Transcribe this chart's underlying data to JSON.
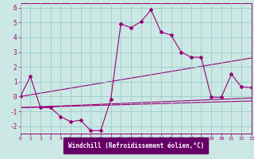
{
  "xlabel": "Windchill (Refroidissement éolien,°C)",
  "xlim": [
    0,
    23
  ],
  "ylim": [
    -2.5,
    6.3
  ],
  "yticks": [
    -2,
    -1,
    0,
    1,
    2,
    3,
    4,
    5,
    6
  ],
  "xticks": [
    0,
    1,
    2,
    3,
    4,
    5,
    6,
    7,
    8,
    9,
    10,
    11,
    12,
    13,
    14,
    15,
    16,
    17,
    18,
    19,
    20,
    21,
    22,
    23
  ],
  "bg_color": "#cce8e4",
  "line_color": "#990077",
  "grid_color": "#99cccc",
  "xlabel_bg": "#660066",
  "xlabel_fg": "#ffffff",
  "line1_x": [
    0,
    1,
    2,
    3,
    4,
    5,
    6,
    7,
    8,
    9,
    10,
    11,
    12,
    13,
    14,
    15,
    16,
    17,
    18,
    19,
    20,
    21,
    22,
    23
  ],
  "line1_y": [
    0.0,
    1.35,
    -0.75,
    -0.75,
    -1.35,
    -1.7,
    -1.6,
    -2.3,
    -2.3,
    -0.2,
    4.9,
    4.65,
    5.05,
    5.85,
    4.35,
    4.15,
    3.0,
    2.65,
    2.65,
    -0.05,
    -0.05,
    1.5,
    0.65,
    0.6
  ],
  "line2_x": [
    0,
    23
  ],
  "line2_y": [
    0.0,
    2.6
  ],
  "line3_x": [
    0,
    23
  ],
  "line3_y": [
    -0.75,
    -0.1
  ],
  "line4_x": [
    0,
    23
  ],
  "line4_y": [
    -0.75,
    -0.3
  ]
}
